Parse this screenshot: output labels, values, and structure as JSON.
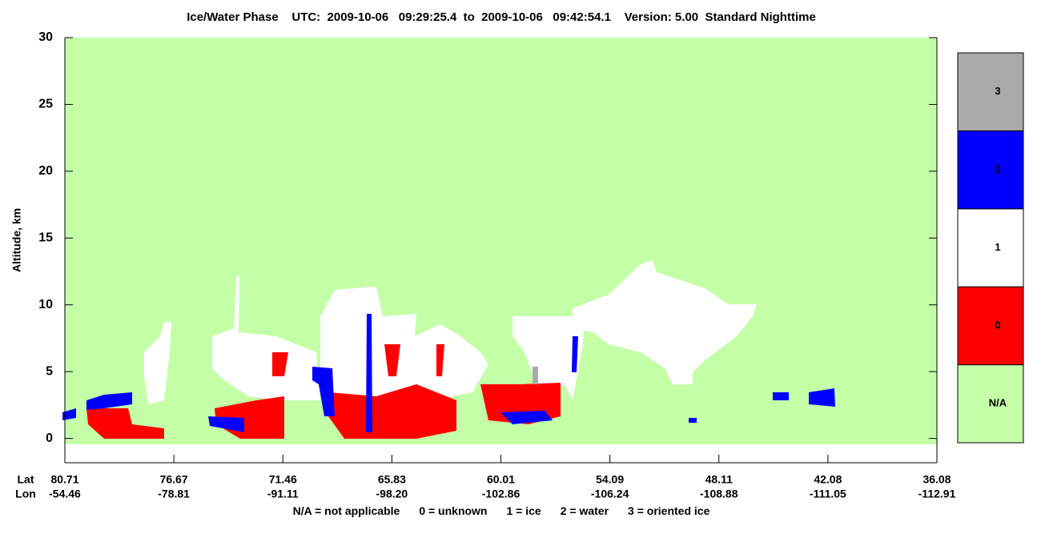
{
  "chart_data": {
    "type": "curtain",
    "title": "Ice/Water Phase    UTC:  2009-10-06   09:29:25.4  to  2009-10-06   09:42:54.1    Version: 5.00  Standard Nighttime",
    "y_label": "Altitude, km",
    "ylim": [
      -2,
      30
    ],
    "yticks": [
      0,
      5,
      10,
      15,
      20,
      25,
      30
    ],
    "x_row_labels": [
      "Lat",
      "Lon"
    ],
    "lat": [
      "80.71",
      "76.67",
      "71.46",
      "65.83",
      "60.01",
      "54.09",
      "48.11",
      "42.08",
      "36.08"
    ],
    "lon": [
      "-54.46",
      "-78.81",
      "-91.11",
      "-98.20",
      "-102.86",
      "-106.24",
      "-108.88",
      "-111.05",
      "-112.91"
    ],
    "colorbar": {
      "labels": [
        "N/A",
        "0",
        "1",
        "2",
        "3"
      ],
      "colors": [
        "#c4ffa8",
        "#ff0000",
        "#ffffff",
        "#0000ff",
        "#aaaaaa"
      ]
    },
    "footnote": [
      "N/A = not applicable",
      "0 = unknown",
      "1 = ice",
      "2 = water",
      "3 = oriented ice"
    ]
  }
}
